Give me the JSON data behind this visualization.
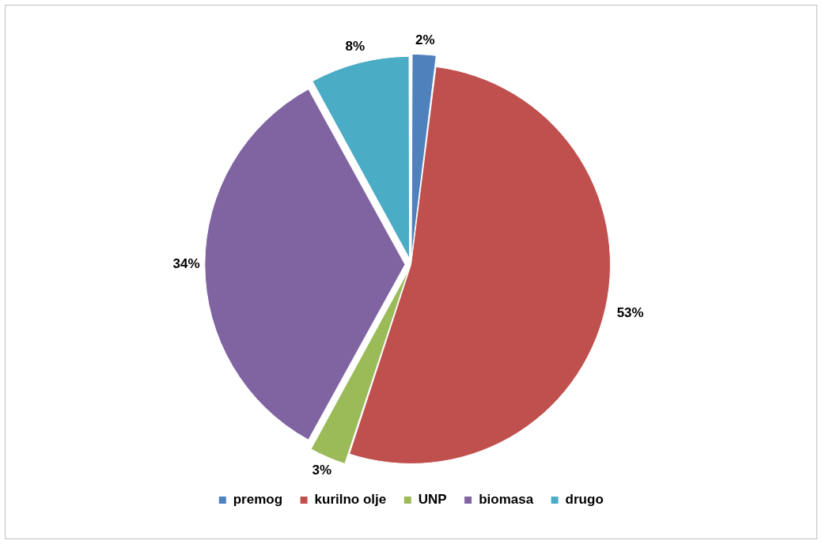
{
  "chart_data": {
    "type": "pie",
    "categories": [
      "premog",
      "kurilno olje",
      "UNP",
      "biomasa",
      "drugo"
    ],
    "values": [
      2,
      53,
      3,
      34,
      8
    ],
    "colors": [
      "#4f81bd",
      "#c0504d",
      "#9bbb59",
      "#8064a2",
      "#4bacc6"
    ],
    "value_labels": [
      "2%",
      "53%",
      "3%",
      "34%",
      "8%"
    ],
    "legend": "bottom"
  }
}
